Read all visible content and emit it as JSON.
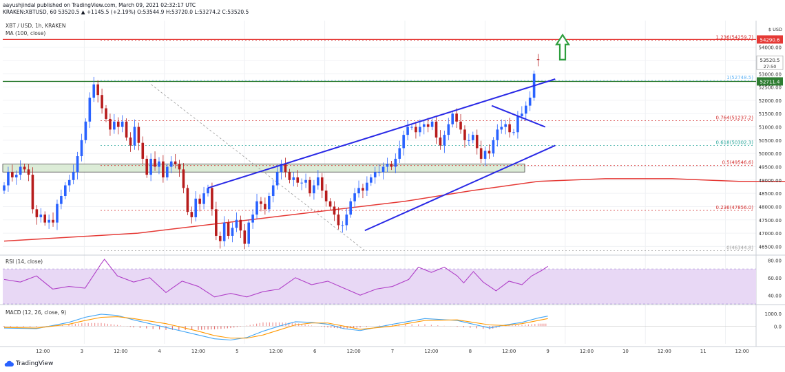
{
  "header": {
    "publisher_line": "aayushjindal published on TradingView.com, March 09, 2021 02:32:17 UTC",
    "symbol_line": "KRAKEN:XBTUSD, 60  53520.5  ▲ +1145.5 (+2.19%)  O:53544.9  H:53720.0  L:53274.2  C:53520.5"
  },
  "panels": {
    "price_title": "XBT / USD, 1h, KRAKEN",
    "ma_label": "MA (100, close)",
    "rsi_label": "RSI (14, close)",
    "macd_label": "MACD (12, 26, close, 9)",
    "brand": "TradingView"
  },
  "colors": {
    "up": "#2962ff",
    "down": "#b71c1c",
    "ma": "#e53935",
    "trendline": "#2929e6",
    "arrow": "#2e9e3e",
    "rsi": "#b040c8",
    "rsi_band": "#e8d8f5",
    "macd_line": "#42a5f5",
    "signal_line": "#ff9800",
    "fib": "#d32f2f",
    "green_level": "#2e7d32",
    "red_level": "#e53935",
    "zone": "#d9ead3"
  },
  "chart_data": [
    {
      "type": "candlestick",
      "title": "XBT / USD, 1h, KRAKEN",
      "ylim": [
        46200,
        55000
      ],
      "y_ticks": [
        46500,
        47000,
        47500,
        48000,
        48500,
        49000,
        49500,
        50000,
        50500,
        51000,
        51500,
        52000,
        52500,
        53000,
        53500,
        54000
      ],
      "y_axis_caption": "$ USD",
      "x_tick_labels": [
        "12:00",
        "3",
        "12:00",
        "4",
        "12:00",
        "5",
        "12:00",
        "6",
        "12:00",
        "7",
        "12:00",
        "8",
        "12:00",
        "9",
        "12:00",
        "10",
        "12:00",
        "11",
        "12:00"
      ],
      "x_tick_hours": [
        12,
        24,
        36,
        48,
        60,
        72,
        84,
        96,
        108,
        120,
        132,
        144,
        156,
        168,
        180,
        192,
        204,
        216,
        228
      ],
      "series": [
        {
          "type": "ohlc",
          "closes": [
            48800,
            49300,
            49100,
            49200,
            49500,
            49400,
            49200,
            47900,
            47600,
            47700,
            47400,
            47500,
            47400,
            48100,
            48400,
            48800,
            49000,
            49300,
            49900,
            50500,
            51200,
            52100,
            52600,
            52200,
            51700,
            51300,
            50900,
            51200,
            51000,
            51200,
            50600,
            50300,
            51000,
            50400,
            49800,
            49200,
            49800,
            49500,
            49700,
            49100,
            49500,
            49700,
            49600,
            49400,
            48700,
            47800,
            47600,
            48300,
            48100,
            48500,
            48700,
            47900,
            46900,
            46700,
            47400,
            46900,
            47200,
            47500,
            47100,
            46600,
            47400,
            47700,
            48200,
            48100,
            47900,
            48400,
            48800,
            49300,
            49600,
            49300,
            49000,
            49100,
            48900,
            48900,
            49000,
            48500,
            48800,
            49100,
            48600,
            48200,
            48000,
            47700,
            47300,
            47300,
            47700,
            48200,
            48500,
            48700,
            48600,
            48900,
            49100,
            49300,
            49300,
            49500,
            49600,
            49500,
            49800,
            50200,
            50700,
            51000,
            51000,
            50800,
            51000,
            51100,
            51000,
            51200,
            50600,
            50300,
            50700,
            51100,
            51500,
            51200,
            50900,
            50500,
            50500,
            50700,
            50200,
            49800,
            50100,
            50000,
            50500,
            50900,
            51000,
            51100,
            50800,
            50800,
            51400,
            51500,
            51800,
            52100,
            53000,
            53520.5
          ],
          "opens": [
            48600,
            48800,
            49300,
            49100,
            49200,
            49500,
            49400,
            49200,
            47900,
            47600,
            47700,
            47400,
            47500,
            47400,
            48100,
            48400,
            48800,
            49000,
            49300,
            49900,
            50500,
            51200,
            52100,
            52600,
            52200,
            51700,
            51300,
            50900,
            51200,
            51000,
            51200,
            50600,
            50300,
            51000,
            50400,
            49800,
            49200,
            49800,
            49500,
            49700,
            49100,
            49500,
            49700,
            49600,
            49400,
            48700,
            47800,
            47600,
            48300,
            48100,
            48500,
            48700,
            47900,
            46900,
            46700,
            47400,
            46900,
            47200,
            47500,
            47100,
            46600,
            47400,
            47700,
            48200,
            48100,
            47900,
            48400,
            48800,
            49300,
            49600,
            49300,
            49000,
            49100,
            48900,
            48900,
            49000,
            48500,
            48800,
            49100,
            48600,
            48200,
            48000,
            47700,
            47300,
            47300,
            47700,
            48200,
            48500,
            48700,
            48600,
            48900,
            49100,
            49300,
            49300,
            49500,
            49600,
            49500,
            49800,
            50200,
            50700,
            51000,
            51000,
            50800,
            51000,
            51100,
            51000,
            51200,
            50600,
            50300,
            50700,
            51100,
            51500,
            51200,
            50900,
            50500,
            50500,
            50700,
            50200,
            49800,
            50100,
            50000,
            50500,
            50900,
            51000,
            51100,
            50800,
            50800,
            51400,
            51500,
            51800,
            52100,
            53544.9
          ]
        }
      ],
      "moving_average": {
        "name": "MA (100, close)",
        "x": [
          0,
          20,
          40,
          60,
          70,
          80,
          90,
          100,
          110,
          120,
          130,
          140,
          150,
          156,
          160,
          164
        ],
        "y": [
          46700,
          47000,
          47600,
          48200,
          48600,
          48950,
          49050,
          49050,
          48950,
          48950,
          48970,
          49000,
          49000,
          49050,
          49200,
          49400
        ]
      },
      "horizontal_levels": [
        {
          "value": 54290.6,
          "label": "54290.6",
          "color": "red_level"
        },
        {
          "value": 52711.4,
          "label": "52711.4",
          "color": "green_level"
        }
      ],
      "price_tags": [
        {
          "value": 53520.5,
          "label": "53520.5",
          "sub": "27:50"
        }
      ],
      "fib_levels": [
        {
          "ratio": "1.236",
          "value": 54259.7,
          "label": "1.236(54259.7)"
        },
        {
          "ratio": "1",
          "value": 52748.5,
          "label": "1(52748.5)"
        },
        {
          "ratio": "0.764",
          "value": 51237.2,
          "label": "0.764(51237.2)"
        },
        {
          "ratio": "0.618",
          "value": 50302.3,
          "label": "0.618(50302.3)"
        },
        {
          "ratio": "0.5",
          "value": 49546.6,
          "label": "0.5(49546.6)"
        },
        {
          "ratio": "0.236",
          "value": 47856.0,
          "label": "0.236(47856.0)"
        },
        {
          "ratio": "0",
          "value": 46344.8,
          "label": "0(46344.8)"
        }
      ],
      "support_zone": {
        "from": 49300,
        "to": 49600
      },
      "trendlines": [
        {
          "x": [
            61,
            165
          ],
          "y": [
            48700,
            52800
          ]
        },
        {
          "x": [
            108,
            165
          ],
          "y": [
            47100,
            50300
          ]
        },
        {
          "x": [
            146,
            162
          ],
          "y": [
            51800,
            51000
          ]
        }
      ]
    },
    {
      "type": "line",
      "title": "RSI (14, close)",
      "ylim": [
        30,
        85
      ],
      "y_ticks": [
        40,
        60,
        80
      ],
      "band": [
        30,
        70
      ],
      "series": [
        {
          "name": "RSI",
          "x": [
            0,
            5,
            10,
            15,
            20,
            25,
            30,
            31,
            35,
            40,
            45,
            50,
            55,
            60,
            65,
            70,
            75,
            80,
            85,
            90,
            95,
            100,
            105,
            110,
            115,
            120,
            125,
            128,
            132,
            136,
            140,
            142,
            145,
            148,
            152,
            156,
            160,
            163,
            166,
            168
          ],
          "y": [
            58,
            55,
            62,
            47,
            50,
            48,
            76,
            81,
            62,
            55,
            60,
            43,
            56,
            50,
            38,
            42,
            38,
            44,
            47,
            60,
            52,
            56,
            48,
            40,
            47,
            50,
            58,
            72,
            66,
            72,
            62,
            54,
            67,
            55,
            45,
            56,
            52,
            62,
            68,
            73
          ]
        }
      ]
    },
    {
      "type": "line",
      "title": "MACD (12, 26, close, 9)",
      "ylim": [
        -1400,
        1600
      ],
      "y_ticks": [
        0.0,
        1000.0
      ],
      "series": [
        {
          "name": "MACD",
          "x": [
            0,
            10,
            20,
            25,
            30,
            35,
            40,
            50,
            60,
            65,
            70,
            75,
            80,
            85,
            90,
            95,
            100,
            105,
            110,
            120,
            130,
            140,
            150,
            155,
            160,
            165,
            168
          ],
          "y": [
            -150,
            -200,
            300,
            700,
            950,
            850,
            500,
            -100,
            -700,
            -1000,
            -1100,
            -900,
            -400,
            0,
            350,
            300,
            150,
            -200,
            -350,
            150,
            600,
            450,
            -150,
            100,
            300,
            650,
            800
          ]
        },
        {
          "name": "Signal",
          "x": [
            0,
            10,
            20,
            25,
            30,
            35,
            40,
            50,
            60,
            65,
            70,
            75,
            80,
            85,
            90,
            95,
            100,
            105,
            110,
            120,
            130,
            140,
            150,
            155,
            160,
            165,
            168
          ],
          "y": [
            -100,
            -150,
            150,
            450,
            700,
            750,
            600,
            200,
            -400,
            -750,
            -950,
            -950,
            -700,
            -300,
            100,
            250,
            250,
            0,
            -250,
            0,
            450,
            500,
            100,
            50,
            200,
            450,
            600
          ]
        }
      ],
      "histogram": {
        "x_step": 1,
        "note": "MACD minus Signal"
      }
    }
  ]
}
